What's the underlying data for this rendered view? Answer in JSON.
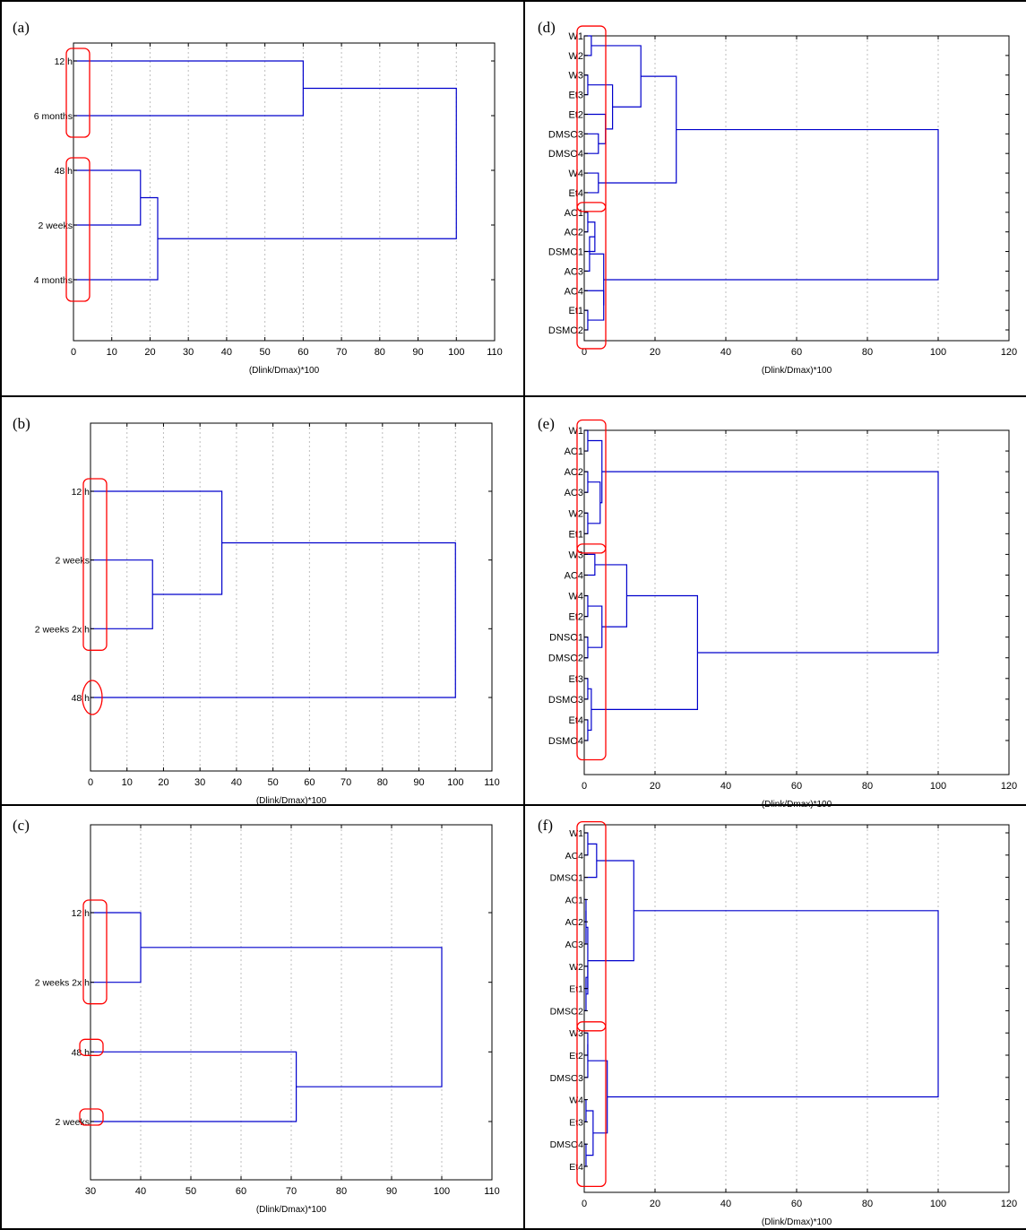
{
  "chart_data": [
    {
      "type": "dendrogram",
      "panel": "(a)",
      "xlabel": "(Dlink/Dmax)*100",
      "xlim": [
        0,
        110
      ],
      "xticks": [
        0,
        10,
        20,
        30,
        40,
        50,
        60,
        70,
        80,
        90,
        100,
        110
      ],
      "leaves": [
        "12 h",
        "6 months",
        "48 h",
        "2 weeks",
        "4 months"
      ],
      "merges": [
        {
          "a": "L:2",
          "b": "L:3",
          "height": 17.5
        },
        {
          "a": "M:0",
          "b": "L:4",
          "height": 22
        },
        {
          "a": "L:0",
          "b": "L:1",
          "height": 60
        },
        {
          "a": "M:2",
          "b": "M:1",
          "height": 100
        }
      ],
      "clusters": [
        [
          0,
          1
        ],
        [
          2,
          4
        ]
      ],
      "circles": []
    },
    {
      "type": "dendrogram",
      "panel": "(b)",
      "xlabel": "(Dlink/Dmax)*100",
      "xlim": [
        0,
        110
      ],
      "xticks": [
        0,
        10,
        20,
        30,
        40,
        50,
        60,
        70,
        80,
        90,
        100,
        110
      ],
      "leaves": [
        "12 h",
        "2 weeks",
        "2 weeks 2x h",
        "48 h"
      ],
      "merges": [
        {
          "a": "L:1",
          "b": "L:2",
          "height": 17
        },
        {
          "a": "L:0",
          "b": "M:0",
          "height": 36
        },
        {
          "a": "M:1",
          "b": "L:3",
          "height": 100
        }
      ],
      "clusters": [
        [
          0,
          2
        ]
      ],
      "circles": [
        3
      ]
    },
    {
      "type": "dendrogram",
      "panel": "(c)",
      "xlabel": "(Dlink/Dmax)*100",
      "xlim": [
        30,
        110
      ],
      "xticks": [
        30,
        40,
        50,
        60,
        70,
        80,
        90,
        100,
        110
      ],
      "leaves": [
        "12 h",
        "2 weeks 2x h",
        "48 h",
        "2 weeks"
      ],
      "merges": [
        {
          "a": "L:0",
          "b": "L:1",
          "height": 40
        },
        {
          "a": "L:2",
          "b": "L:3",
          "height": 71
        },
        {
          "a": "M:0",
          "b": "M:1",
          "height": 100
        }
      ],
      "clusters": [
        [
          0,
          1
        ],
        [
          2,
          2
        ],
        [
          3,
          3
        ]
      ],
      "circles": []
    },
    {
      "type": "dendrogram",
      "panel": "(d)",
      "xlabel": "(Dlink/Dmax)*100",
      "xlim": [
        0,
        120
      ],
      "xticks": [
        0,
        20,
        40,
        60,
        80,
        100,
        120
      ],
      "leaves": [
        "W1",
        "W2",
        "W3",
        "Et3",
        "Et2",
        "DMSO3",
        "DMSO4",
        "W4",
        "Et4",
        "AC1",
        "AC2",
        "DSMO1",
        "AC3",
        "AC4",
        "Et1",
        "DSMO2"
      ],
      "merges": [
        {
          "a": "L:0",
          "b": "L:1",
          "height": 2
        },
        {
          "a": "L:2",
          "b": "L:3",
          "height": 1
        },
        {
          "a": "L:5",
          "b": "L:6",
          "height": 4
        },
        {
          "a": "L:4",
          "b": "M:2",
          "height": 6
        },
        {
          "a": "M:1",
          "b": "M:3",
          "height": 8
        },
        {
          "a": "L:7",
          "b": "L:8",
          "height": 4
        },
        {
          "a": "M:0",
          "b": "M:4",
          "height": 16
        },
        {
          "a": "M:6",
          "b": "M:5",
          "height": 26
        },
        {
          "a": "L:9",
          "b": "L:10",
          "height": 1
        },
        {
          "a": "M:8",
          "b": "L:11",
          "height": 3
        },
        {
          "a": "M:9",
          "b": "L:12",
          "height": 1.5
        },
        {
          "a": "L:14",
          "b": "L:15",
          "height": 1
        },
        {
          "a": "L:13",
          "b": "M:11",
          "height": 5.5
        },
        {
          "a": "M:10",
          "b": "M:12",
          "height": 5.5
        },
        {
          "a": "M:7",
          "b": "M:13",
          "height": 100
        }
      ],
      "clusters": [
        [
          0,
          8
        ],
        [
          9,
          15
        ]
      ],
      "circles": []
    },
    {
      "type": "dendrogram",
      "panel": "(e)",
      "xlabel": "(Dlink/Dmax)*100",
      "xlim": [
        0,
        120
      ],
      "xticks": [
        0,
        20,
        40,
        60,
        80,
        100,
        120
      ],
      "leaves": [
        "W1",
        "AC1",
        "AC2",
        "AC3",
        "W2",
        "Et1",
        "W3",
        "AC4",
        "W4",
        "Et2",
        "DNSO1",
        "DMSO2",
        "Et3",
        "DSMO3",
        "Et4",
        "DSMO4"
      ],
      "merges": [
        {
          "a": "L:0",
          "b": "L:1",
          "height": 1
        },
        {
          "a": "L:2",
          "b": "L:3",
          "height": 1
        },
        {
          "a": "L:4",
          "b": "L:5",
          "height": 1
        },
        {
          "a": "M:1",
          "b": "M:2",
          "height": 4.5
        },
        {
          "a": "M:0",
          "b": "M:3",
          "height": 5
        },
        {
          "a": "L:6",
          "b": "L:7",
          "height": 3
        },
        {
          "a": "L:8",
          "b": "L:9",
          "height": 1
        },
        {
          "a": "L:10",
          "b": "L:11",
          "height": 1
        },
        {
          "a": "M:6",
          "b": "M:7",
          "height": 5
        },
        {
          "a": "M:5",
          "b": "M:8",
          "height": 12
        },
        {
          "a": "L:12",
          "b": "L:13",
          "height": 1
        },
        {
          "a": "L:14",
          "b": "L:15",
          "height": 1
        },
        {
          "a": "M:10",
          "b": "M:11",
          "height": 2
        },
        {
          "a": "M:9",
          "b": "M:12",
          "height": 32
        },
        {
          "a": "M:4",
          "b": "M:13",
          "height": 100
        }
      ],
      "clusters": [
        [
          0,
          5
        ],
        [
          6,
          15
        ]
      ],
      "circles": []
    },
    {
      "type": "dendrogram",
      "panel": "(f)",
      "xlabel": "(Dlink/Dmax)*100",
      "xlim": [
        0,
        120
      ],
      "xticks": [
        0,
        20,
        40,
        60,
        80,
        100,
        120
      ],
      "leaves": [
        "W1",
        "AC4",
        "DMSO1",
        "AC1",
        "AC2",
        "AC3",
        "W2",
        "Et1",
        "DMSO2",
        "W3",
        "Et2",
        "DMSO3",
        "W4",
        "Et3",
        "DMSO4",
        "Et4"
      ],
      "merges": [
        {
          "a": "L:0",
          "b": "L:1",
          "height": 1
        },
        {
          "a": "M:0",
          "b": "L:2",
          "height": 3.5
        },
        {
          "a": "L:3",
          "b": "L:4",
          "height": 0.5
        },
        {
          "a": "M:2",
          "b": "L:5",
          "height": 0.5
        },
        {
          "a": "L:6",
          "b": "L:7",
          "height": 1
        },
        {
          "a": "M:4",
          "b": "L:8",
          "height": 0.5
        },
        {
          "a": "M:3",
          "b": "M:5",
          "height": 1
        },
        {
          "a": "M:1",
          "b": "M:6",
          "height": 14
        },
        {
          "a": "L:9",
          "b": "L:10",
          "height": 1
        },
        {
          "a": "M:8",
          "b": "L:11",
          "height": 1
        },
        {
          "a": "L:12",
          "b": "L:13",
          "height": 0.5
        },
        {
          "a": "L:14",
          "b": "L:15",
          "height": 0.5
        },
        {
          "a": "M:10",
          "b": "M:11",
          "height": 2.5
        },
        {
          "a": "M:9",
          "b": "M:12",
          "height": 6.5
        },
        {
          "a": "M:7",
          "b": "M:13",
          "height": 100
        }
      ],
      "clusters": [
        [
          0,
          8
        ],
        [
          9,
          15
        ]
      ],
      "circles": []
    }
  ]
}
